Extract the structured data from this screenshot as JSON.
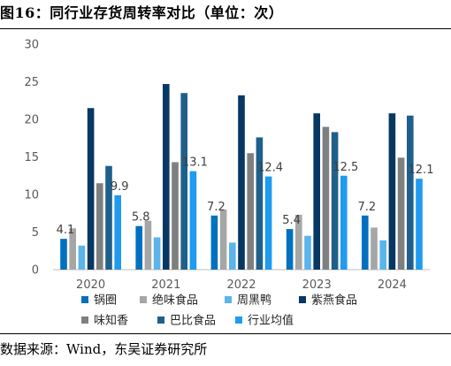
{
  "figure": {
    "title": "图16：同行业存货周转率对比（单位：次）",
    "source": "数据来源：Wind，东吴证券研究所"
  },
  "chart_data": {
    "type": "bar",
    "categories": [
      "2020",
      "2021",
      "2022",
      "2023",
      "2024"
    ],
    "ylim": [
      0,
      30
    ],
    "yticks": [
      0,
      5,
      10,
      15,
      20,
      25,
      30
    ],
    "grid": false,
    "legend_position": "bottom",
    "series": [
      {
        "name": "锅圈",
        "color": "#0070C0",
        "values": [
          4.1,
          5.8,
          7.2,
          5.4,
          7.2
        ],
        "labels": [
          "4.1",
          "5.8",
          "7.2",
          "5.4",
          "7.2"
        ]
      },
      {
        "name": "绝味食品",
        "color": "#A6A6A6",
        "values": [
          5.5,
          6.5,
          8.0,
          7.3,
          5.6
        ]
      },
      {
        "name": "周黑鸭",
        "color": "#5BB4EA",
        "values": [
          3.2,
          4.3,
          3.6,
          4.5,
          3.9
        ]
      },
      {
        "name": "紫燕食品",
        "color": "#073763",
        "values": [
          21.5,
          24.7,
          23.2,
          20.8,
          20.8
        ]
      },
      {
        "name": "味知香",
        "color": "#7F7F7F",
        "values": [
          11.5,
          14.3,
          15.5,
          19.0,
          14.9
        ]
      },
      {
        "name": "巴比食品",
        "color": "#1F5F8B",
        "values": [
          13.8,
          23.5,
          17.6,
          18.3,
          20.5
        ]
      },
      {
        "name": "行业均值",
        "color": "#1F9BF0",
        "values": [
          9.9,
          13.1,
          12.4,
          12.5,
          12.1
        ],
        "labels": [
          "9.9",
          "13.1",
          "12.4",
          "12.5",
          "12.1"
        ]
      }
    ]
  }
}
